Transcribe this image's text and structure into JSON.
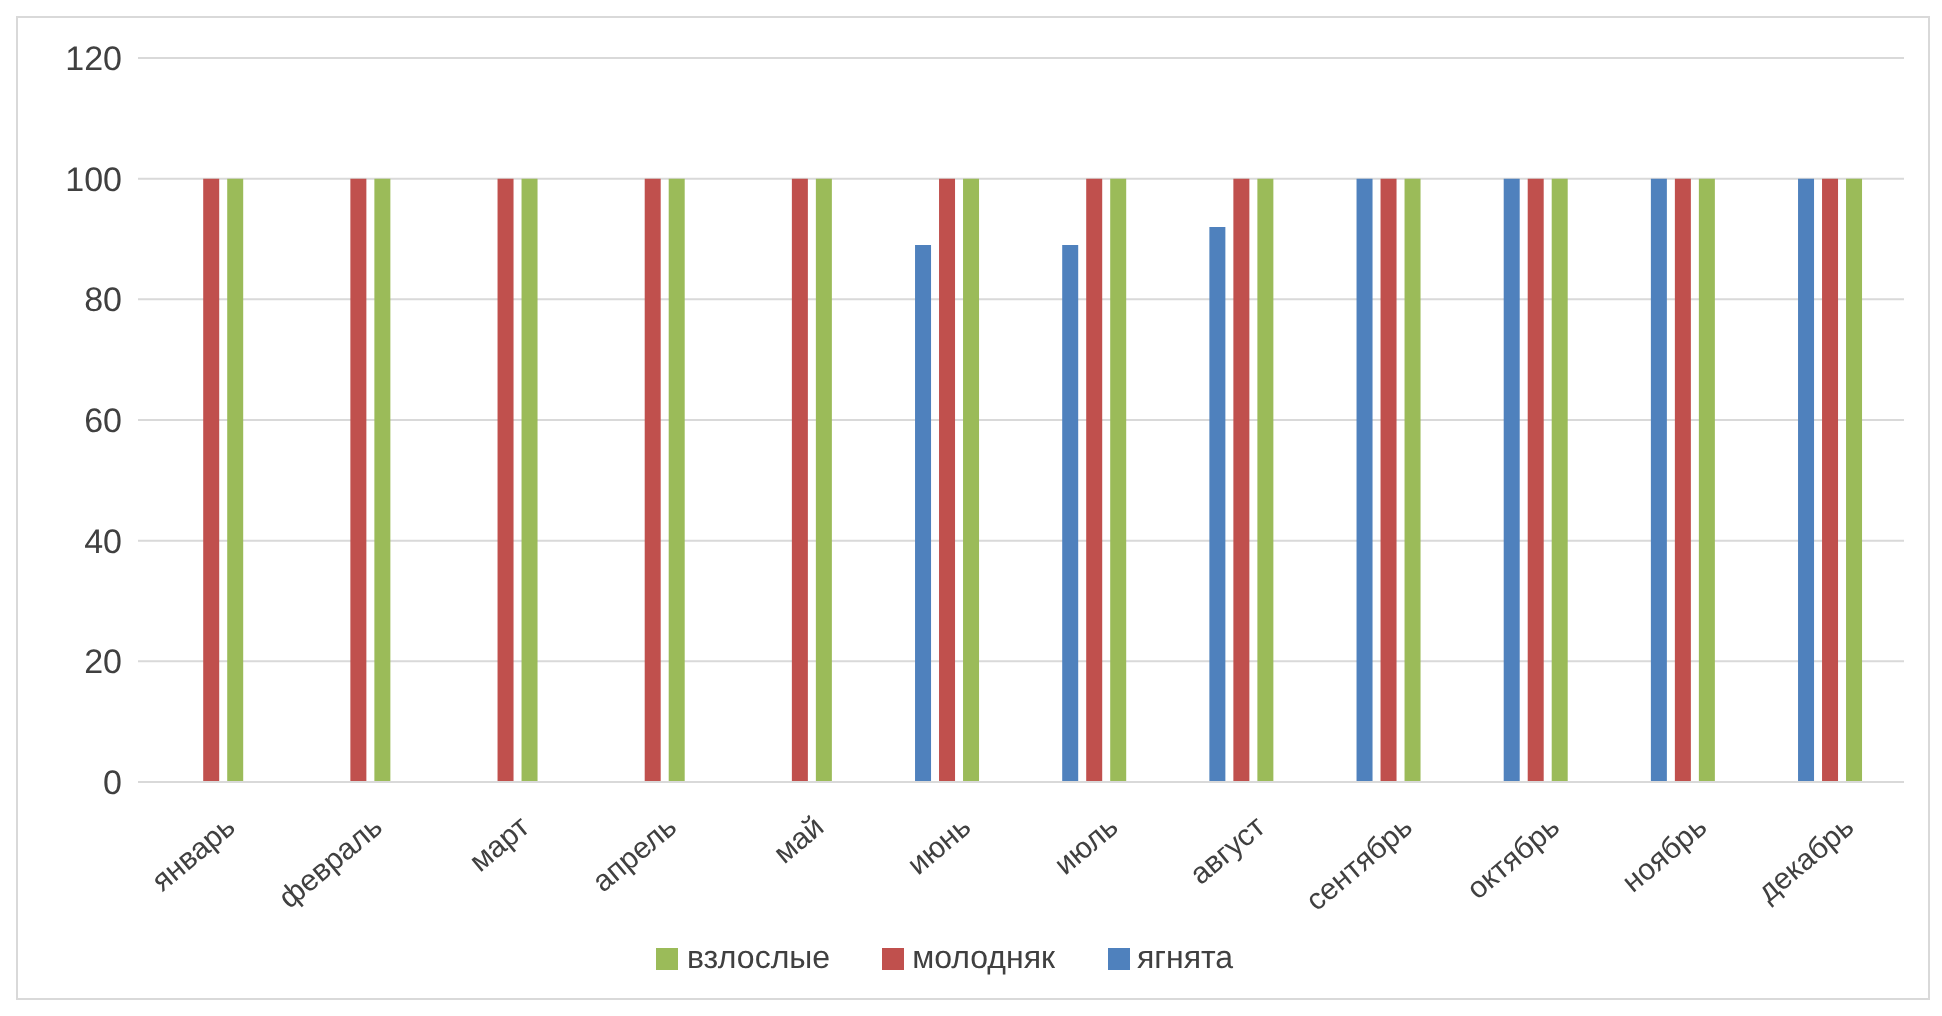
{
  "chart_data": {
    "type": "bar",
    "categories": [
      "январь",
      "февраль",
      "март",
      "апрель",
      "май",
      "июнь",
      "июль",
      "август",
      "сентябрь",
      "октябрь",
      "ноябрь",
      "декабрь"
    ],
    "series": [
      {
        "name": "ягнята",
        "color": "#4f81bd",
        "values": [
          0,
          0,
          0,
          0,
          0,
          89,
          89,
          92,
          100,
          100,
          100,
          100
        ]
      },
      {
        "name": "молодняк",
        "color": "#c0504d",
        "values": [
          100,
          100,
          100,
          100,
          100,
          100,
          100,
          100,
          100,
          100,
          100,
          100
        ]
      },
      {
        "name": "взлослые",
        "color": "#9bbb59",
        "values": [
          100,
          100,
          100,
          100,
          100,
          100,
          100,
          100,
          100,
          100,
          100,
          100
        ]
      }
    ],
    "ylim": [
      0,
      120
    ],
    "yticks": [
      0,
      20,
      40,
      60,
      80,
      100,
      120
    ],
    "grid": "y",
    "legend": "bottom"
  }
}
